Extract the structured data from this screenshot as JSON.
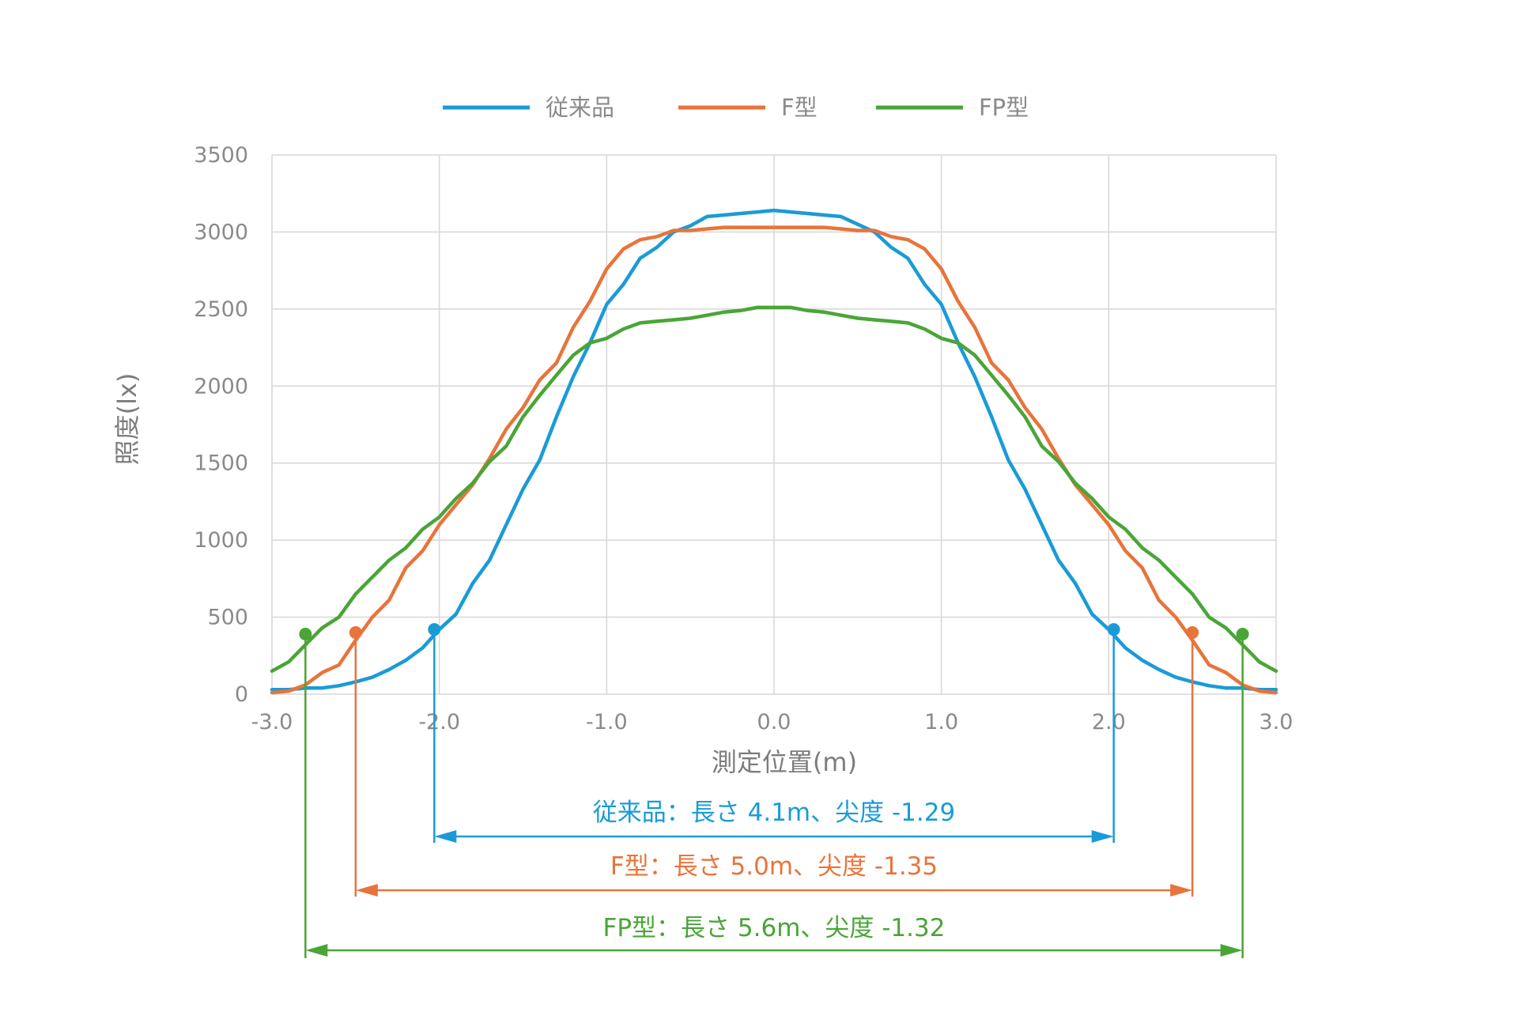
{
  "chart_data": {
    "type": "line",
    "xlabel": "測定位置(m)",
    "ylabel": "照度(lx)",
    "xlim": [
      -3.0,
      3.0
    ],
    "ylim": [
      0,
      3500
    ],
    "x_ticks": [
      "-3.0",
      "-2.0",
      "-1.0",
      "0.0",
      "1.0",
      "2.0",
      "3.0"
    ],
    "y_ticks": [
      "0",
      "500",
      "1000",
      "1500",
      "2000",
      "2500",
      "3000",
      "3500"
    ],
    "grid": true,
    "legend_position": "top",
    "series": [
      {
        "name": "従来品",
        "color": "#1a9bd7",
        "x": [
          -3.0,
          -2.9,
          -2.8,
          -2.7,
          -2.6,
          -2.5,
          -2.4,
          -2.3,
          -2.2,
          -2.1,
          -2.0,
          -1.9,
          -1.8,
          -1.7,
          -1.6,
          -1.5,
          -1.4,
          -1.3,
          -1.2,
          -1.1,
          -1.0,
          -0.9,
          -0.8,
          -0.7,
          -0.6,
          -0.5,
          -0.4,
          -0.3,
          -0.2,
          -0.1,
          0.0,
          0.1,
          0.2,
          0.3,
          0.4,
          0.5,
          0.6,
          0.7,
          0.8,
          0.9,
          1.0,
          1.1,
          1.2,
          1.3,
          1.4,
          1.5,
          1.6,
          1.7,
          1.8,
          1.9,
          2.0,
          2.1,
          2.2,
          2.3,
          2.4,
          2.5,
          2.6,
          2.7,
          2.8,
          2.9,
          3.0
        ],
        "y": [
          30,
          30,
          40,
          40,
          55,
          80,
          110,
          160,
          220,
          300,
          420,
          520,
          720,
          870,
          1100,
          1330,
          1520,
          1800,
          2060,
          2280,
          2530,
          2660,
          2830,
          2900,
          3000,
          3040,
          3100,
          3110,
          3120,
          3130,
          3140,
          3130,
          3120,
          3110,
          3100,
          3050,
          3000,
          2900,
          2830,
          2660,
          2530,
          2280,
          2060,
          1800,
          1520,
          1330,
          1100,
          870,
          720,
          520,
          420,
          300,
          220,
          160,
          110,
          80,
          55,
          40,
          40,
          30,
          30
        ]
      },
      {
        "name": "F型",
        "color": "#e8743b",
        "x": [
          -3.0,
          -2.9,
          -2.8,
          -2.7,
          -2.6,
          -2.5,
          -2.4,
          -2.3,
          -2.2,
          -2.1,
          -2.0,
          -1.9,
          -1.8,
          -1.7,
          -1.6,
          -1.5,
          -1.4,
          -1.3,
          -1.2,
          -1.1,
          -1.0,
          -0.9,
          -0.8,
          -0.7,
          -0.6,
          -0.5,
          -0.4,
          -0.3,
          -0.2,
          -0.1,
          0.0,
          0.1,
          0.2,
          0.3,
          0.4,
          0.5,
          0.6,
          0.7,
          0.8,
          0.9,
          1.0,
          1.1,
          1.2,
          1.3,
          1.4,
          1.5,
          1.6,
          1.7,
          1.8,
          1.9,
          2.0,
          2.1,
          2.2,
          2.3,
          2.4,
          2.5,
          2.6,
          2.7,
          2.8,
          2.9,
          3.0
        ],
        "y": [
          10,
          20,
          60,
          140,
          190,
          350,
          500,
          610,
          820,
          930,
          1100,
          1230,
          1360,
          1530,
          1720,
          1860,
          2040,
          2150,
          2380,
          2550,
          2760,
          2890,
          2950,
          2970,
          3010,
          3010,
          3020,
          3030,
          3030,
          3030,
          3030,
          3030,
          3030,
          3030,
          3020,
          3010,
          3010,
          2970,
          2950,
          2890,
          2760,
          2550,
          2380,
          2150,
          2040,
          1860,
          1720,
          1530,
          1360,
          1230,
          1100,
          930,
          820,
          610,
          500,
          350,
          190,
          140,
          60,
          20,
          10
        ]
      },
      {
        "name": "FP型",
        "color": "#4aa537",
        "x": [
          -3.0,
          -2.9,
          -2.8,
          -2.7,
          -2.6,
          -2.5,
          -2.4,
          -2.3,
          -2.2,
          -2.1,
          -2.0,
          -1.9,
          -1.8,
          -1.7,
          -1.6,
          -1.5,
          -1.4,
          -1.3,
          -1.2,
          -1.1,
          -1.0,
          -0.9,
          -0.8,
          -0.7,
          -0.6,
          -0.5,
          -0.4,
          -0.3,
          -0.2,
          -0.1,
          0.0,
          0.1,
          0.2,
          0.3,
          0.4,
          0.5,
          0.6,
          0.7,
          0.8,
          0.9,
          1.0,
          1.1,
          1.2,
          1.3,
          1.4,
          1.5,
          1.6,
          1.7,
          1.8,
          1.9,
          2.0,
          2.1,
          2.2,
          2.3,
          2.4,
          2.5,
          2.6,
          2.7,
          2.8,
          2.9,
          3.0
        ],
        "y": [
          150,
          210,
          320,
          430,
          500,
          650,
          760,
          870,
          950,
          1070,
          1150,
          1270,
          1370,
          1510,
          1610,
          1800,
          1940,
          2070,
          2200,
          2280,
          2310,
          2370,
          2410,
          2420,
          2430,
          2440,
          2460,
          2480,
          2490,
          2510,
          2510,
          2510,
          2490,
          2480,
          2460,
          2440,
          2430,
          2420,
          2410,
          2370,
          2310,
          2280,
          2200,
          2070,
          1940,
          1800,
          1610,
          1510,
          1370,
          1270,
          1150,
          1070,
          950,
          870,
          760,
          650,
          500,
          430,
          320,
          210,
          150
        ]
      }
    ],
    "annotations": [
      {
        "series": "従来品",
        "text": "従来品：長さ 4.1m、尖度 -1.29",
        "x_start": -2.03,
        "x_end": 2.03,
        "y_value": 420,
        "color": "#1a9bd7"
      },
      {
        "series": "F型",
        "text": "F型：長さ 5.0m、尖度 -1.35",
        "x_start": -2.5,
        "x_end": 2.5,
        "y_value": 400,
        "color": "#e8743b"
      },
      {
        "series": "FP型",
        "text": "FP型：長さ 5.6m、尖度 -1.32",
        "x_start": -2.8,
        "x_end": 2.8,
        "y_value": 390,
        "color": "#4aa537"
      }
    ]
  }
}
